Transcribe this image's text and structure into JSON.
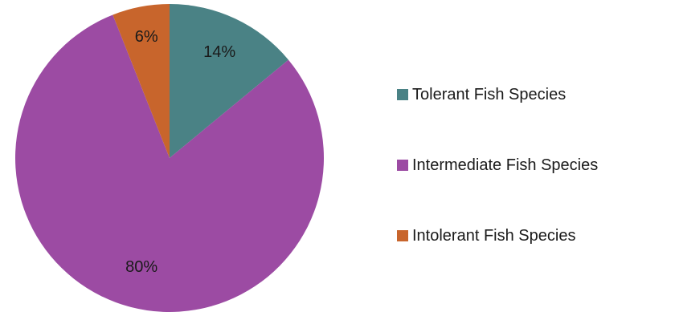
{
  "chart_data": {
    "type": "pie",
    "title": "",
    "legend_position": "right",
    "series": [
      {
        "categories": [
          "Tolerant Fish Species",
          "Intermediate Fish Species",
          "Intolerant Fish Species"
        ],
        "values": [
          14,
          80,
          6
        ],
        "labels": [
          "14%",
          "80%",
          "6%"
        ],
        "colors": [
          "#4a8285",
          "#9c4ba3",
          "#c8652c"
        ]
      }
    ]
  }
}
